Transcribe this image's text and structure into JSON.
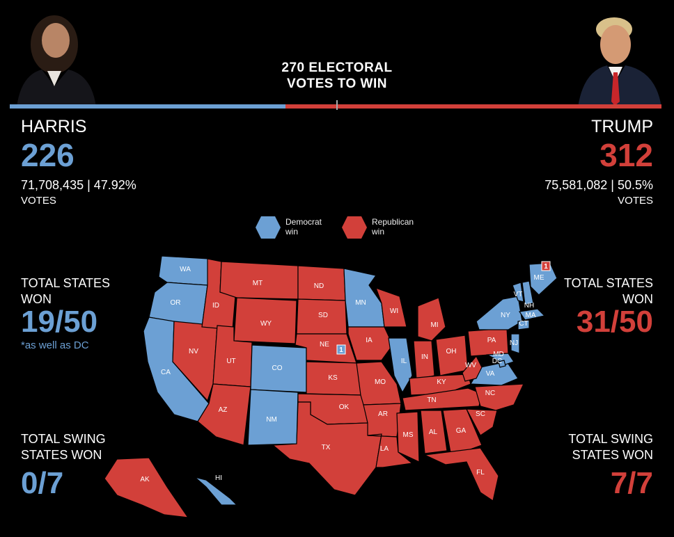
{
  "headline": "270 ELECTORAL\nVOTES TO WIN",
  "colors": {
    "democrat": "#6ca0d4",
    "republican": "#d2403a"
  },
  "harris": {
    "name": "HARRIS",
    "electoral_votes": "226",
    "popular": "71,708,435 | 47.92%",
    "votes_label": "VOTES",
    "states_label": "TOTAL STATES\nWON",
    "states_won": "19/50",
    "states_note": "*as well as DC",
    "swing_label": "TOTAL SWING\nSTATES WON",
    "swing_won": "0/7"
  },
  "trump": {
    "name": "TRUMP",
    "electoral_votes": "312",
    "popular": "75,581,082 | 50.5%",
    "votes_label": "VOTES",
    "states_label": "TOTAL STATES\nWON",
    "states_won": "31/50",
    "swing_label": "TOTAL SWING\nSTATES WON",
    "swing_won": "7/7"
  },
  "legend": {
    "democrat": "Democrat\nwin",
    "republican": "Republican\nwin"
  },
  "map": {
    "states": [
      {
        "code": "WA",
        "party": "D"
      },
      {
        "code": "OR",
        "party": "D"
      },
      {
        "code": "CA",
        "party": "D"
      },
      {
        "code": "NV",
        "party": "R"
      },
      {
        "code": "ID",
        "party": "R"
      },
      {
        "code": "MT",
        "party": "R"
      },
      {
        "code": "WY",
        "party": "R"
      },
      {
        "code": "UT",
        "party": "R"
      },
      {
        "code": "CO",
        "party": "D"
      },
      {
        "code": "AZ",
        "party": "R"
      },
      {
        "code": "NM",
        "party": "D"
      },
      {
        "code": "ND",
        "party": "R"
      },
      {
        "code": "SD",
        "party": "R"
      },
      {
        "code": "NE",
        "party": "R"
      },
      {
        "code": "KS",
        "party": "R"
      },
      {
        "code": "OK",
        "party": "R"
      },
      {
        "code": "TX",
        "party": "R"
      },
      {
        "code": "MN",
        "party": "D"
      },
      {
        "code": "IA",
        "party": "R"
      },
      {
        "code": "MO",
        "party": "R"
      },
      {
        "code": "AR",
        "party": "R"
      },
      {
        "code": "LA",
        "party": "R"
      },
      {
        "code": "WI",
        "party": "R"
      },
      {
        "code": "IL",
        "party": "D"
      },
      {
        "code": "MI",
        "party": "R"
      },
      {
        "code": "IN",
        "party": "R"
      },
      {
        "code": "OH",
        "party": "R"
      },
      {
        "code": "KY",
        "party": "R"
      },
      {
        "code": "TN",
        "party": "R"
      },
      {
        "code": "MS",
        "party": "R"
      },
      {
        "code": "AL",
        "party": "R"
      },
      {
        "code": "GA",
        "party": "R"
      },
      {
        "code": "FL",
        "party": "R"
      },
      {
        "code": "SC",
        "party": "R"
      },
      {
        "code": "NC",
        "party": "R"
      },
      {
        "code": "VA",
        "party": "D"
      },
      {
        "code": "WV",
        "party": "R"
      },
      {
        "code": "PA",
        "party": "R"
      },
      {
        "code": "NY",
        "party": "D"
      },
      {
        "code": "VT",
        "party": "D"
      },
      {
        "code": "NH",
        "party": "D"
      },
      {
        "code": "ME",
        "party": "D"
      },
      {
        "code": "MA",
        "party": "D"
      },
      {
        "code": "CT",
        "party": "D"
      },
      {
        "code": "NJ",
        "party": "D"
      },
      {
        "code": "MD",
        "party": "D"
      },
      {
        "code": "DC",
        "party": "D"
      },
      {
        "code": "AK",
        "party": "R"
      },
      {
        "code": "HI",
        "party": "D"
      }
    ],
    "split_markers": [
      {
        "state": "NE",
        "label": "1",
        "party": "D"
      },
      {
        "state": "ME",
        "label": "1",
        "party": "R"
      }
    ]
  }
}
